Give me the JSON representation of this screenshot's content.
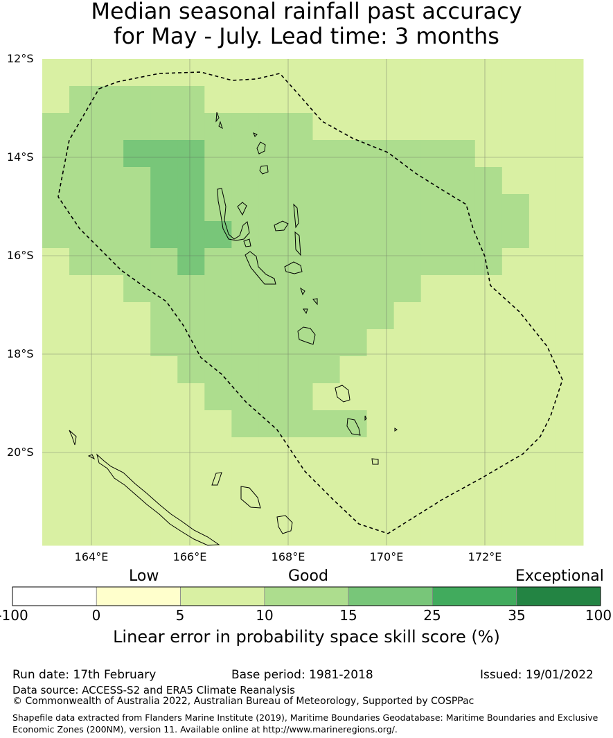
{
  "title": {
    "line1": "Median seasonal rainfall past accuracy",
    "line2": "for May - July. Lead time: 3 months"
  },
  "map": {
    "lat_labels": [
      "12°S",
      "14°S",
      "16°S",
      "18°S",
      "20°S"
    ],
    "lon_labels": [
      "164°E",
      "166°E",
      "168°E",
      "170°E",
      "172°E"
    ],
    "lon_range": [
      163,
      174
    ],
    "lat_range": [
      -12,
      -21.9
    ],
    "grid_colors": [
      "#ffffff",
      "#ffffcc",
      "#d9f0a3",
      "#addd8e",
      "#78c679",
      "#41ab5d",
      "#238443"
    ],
    "cell_classes": [
      [
        2,
        2,
        2,
        2,
        2,
        2,
        2,
        2,
        2,
        2,
        2,
        2,
        2,
        2,
        2,
        2,
        2,
        2,
        2,
        2
      ],
      [
        2,
        3,
        3,
        3,
        3,
        3,
        2,
        2,
        2,
        2,
        2,
        2,
        2,
        2,
        2,
        2,
        2,
        2,
        2,
        2
      ],
      [
        3,
        3,
        3,
        3,
        3,
        3,
        3,
        3,
        3,
        3,
        2,
        2,
        2,
        2,
        2,
        2,
        2,
        2,
        2,
        2
      ],
      [
        3,
        3,
        3,
        4,
        4,
        4,
        3,
        3,
        3,
        3,
        3,
        3,
        3,
        3,
        3,
        3,
        2,
        2,
        2,
        2
      ],
      [
        3,
        3,
        3,
        3,
        4,
        4,
        3,
        3,
        3,
        3,
        3,
        3,
        3,
        3,
        3,
        3,
        3,
        2,
        2,
        2
      ],
      [
        3,
        3,
        3,
        3,
        4,
        4,
        3,
        3,
        3,
        3,
        3,
        3,
        3,
        3,
        3,
        3,
        3,
        3,
        2,
        2
      ],
      [
        3,
        3,
        3,
        3,
        4,
        4,
        4,
        3,
        3,
        3,
        3,
        3,
        3,
        3,
        3,
        3,
        3,
        3,
        2,
        2
      ],
      [
        2,
        3,
        3,
        3,
        3,
        4,
        3,
        3,
        3,
        3,
        3,
        3,
        3,
        3,
        3,
        3,
        3,
        2,
        2,
        2
      ],
      [
        2,
        2,
        2,
        3,
        3,
        3,
        3,
        3,
        3,
        3,
        3,
        3,
        3,
        3,
        2,
        2,
        2,
        2,
        2,
        2
      ],
      [
        2,
        2,
        2,
        2,
        3,
        3,
        3,
        3,
        3,
        3,
        3,
        3,
        3,
        2,
        2,
        2,
        2,
        2,
        2,
        2
      ],
      [
        2,
        2,
        2,
        2,
        3,
        3,
        3,
        3,
        3,
        3,
        3,
        3,
        2,
        2,
        2,
        2,
        2,
        2,
        2,
        2
      ],
      [
        2,
        2,
        2,
        2,
        2,
        3,
        3,
        3,
        3,
        3,
        3,
        2,
        2,
        2,
        2,
        2,
        2,
        2,
        2,
        2
      ],
      [
        2,
        2,
        2,
        2,
        2,
        2,
        3,
        3,
        3,
        3,
        2,
        2,
        2,
        2,
        2,
        2,
        2,
        2,
        2,
        2
      ],
      [
        2,
        2,
        2,
        2,
        2,
        2,
        2,
        3,
        3,
        3,
        3,
        3,
        2,
        2,
        2,
        2,
        2,
        2,
        2,
        2
      ],
      [
        2,
        2,
        2,
        2,
        2,
        2,
        2,
        2,
        2,
        2,
        2,
        2,
        2,
        2,
        2,
        2,
        2,
        2,
        2,
        2
      ],
      [
        2,
        2,
        2,
        2,
        2,
        2,
        2,
        2,
        2,
        2,
        2,
        2,
        2,
        2,
        2,
        2,
        2,
        2,
        2,
        2
      ],
      [
        2,
        2,
        2,
        2,
        2,
        2,
        2,
        2,
        2,
        2,
        2,
        2,
        2,
        2,
        2,
        2,
        2,
        2,
        2,
        2
      ],
      [
        2,
        2,
        2,
        2,
        2,
        2,
        2,
        2,
        2,
        2,
        2,
        2,
        2,
        2,
        2,
        2,
        2,
        2,
        2,
        2
      ]
    ]
  },
  "colorbar": {
    "category_low": "Low",
    "category_good": "Good",
    "category_exceptional": "Exceptional",
    "ticks": [
      "-100",
      "0",
      "5",
      "10",
      "15",
      "25",
      "35",
      "100"
    ],
    "colors": [
      "#ffffff",
      "#ffffcc",
      "#d9f0a3",
      "#addd8e",
      "#78c679",
      "#41ab5d",
      "#238443"
    ],
    "title": "Linear error in probability space skill score (%)"
  },
  "footer": {
    "run_date": "Run date: 17th February",
    "base_period": "Base period: 1981-2018",
    "issued": "Issued: 19/01/2022",
    "data_source": "Data source: ACCESS-S2 and ERA5 Climate Reanalysis",
    "copyright": "© Commonwealth of Australia 2022, Australian Bureau of Meteorology, Supported by COSPPac",
    "shapefile": "Shapefile data extracted from Flanders Marine Institute (2019), Maritime Boundaries Geodatabase: Maritime Boundaries and Exclusive Economic Zones (200NM), version 11. Available online at http://www.marineregions.org/."
  }
}
